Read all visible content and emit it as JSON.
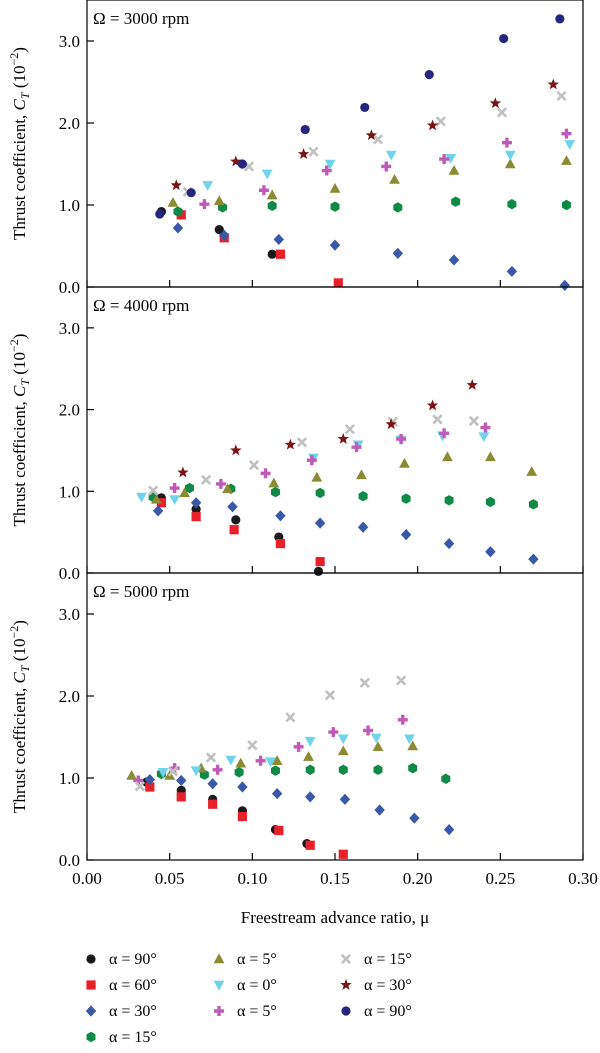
{
  "chart_data": {
    "type": "scatter",
    "xlabel": "Freestream advance ratio, μ",
    "ylabel": "Thrust coefficient, CT (10⁻²)",
    "ylabel_parts": {
      "main": "Thrust coefficient, ",
      "symbol": "C",
      "subscript": "T",
      "unit_open": " (10",
      "unit_exp": "−2",
      "unit_close": ")"
    },
    "xlim": [
      0,
      0.3
    ],
    "ylim": [
      0,
      3.5
    ],
    "x_ticks": [
      "0.00",
      "0.05",
      "0.10",
      "0.15",
      "0.20",
      "0.25",
      "0.30"
    ],
    "y_ticks": [
      "0.0",
      "1.0",
      "2.0",
      "3.0"
    ],
    "legend_position": "bottom",
    "series_styles": [
      {
        "name": "α = 90°",
        "color": "#1a1a1a",
        "marker": "circle"
      },
      {
        "name": "α = 60°",
        "color": "#e8202a",
        "marker": "square"
      },
      {
        "name": "α = 30°",
        "color": "#3a58a8",
        "marker": "diamond"
      },
      {
        "name": "α = 15°",
        "color": "#0f8a46",
        "marker": "hexagon"
      },
      {
        "name": "α = 5°",
        "color": "#8b8b32",
        "marker": "triangle"
      },
      {
        "name": "α = 0°",
        "color": "#6fd3ea",
        "marker": "triangle-down"
      },
      {
        "name": "α = 5°",
        "color": "#c05ab8",
        "marker": "plus"
      },
      {
        "name": "α = 15°",
        "color": "#c0c0c0",
        "marker": "x"
      },
      {
        "name": "α = 30°",
        "color": "#7a1414",
        "marker": "star"
      },
      {
        "name": "α = 90°",
        "color": "#26267e",
        "marker": "circle"
      }
    ],
    "panels": [
      {
        "title": "Ω = 3000 rpm",
        "series": [
          {
            "x": [
              0.045,
              0.08,
              0.112
            ],
            "y": [
              0.92,
              0.7,
              0.4
            ]
          },
          {
            "x": [
              0.057,
              0.083,
              0.117,
              0.152
            ],
            "y": [
              0.88,
              0.6,
              0.4,
              0.05
            ]
          },
          {
            "x": [
              0.055,
              0.083,
              0.116,
              0.15,
              0.188,
              0.222,
              0.257,
              0.289
            ],
            "y": [
              0.72,
              0.63,
              0.58,
              0.51,
              0.41,
              0.33,
              0.19,
              0.02
            ]
          },
          {
            "x": [
              0.055,
              0.082,
              0.112,
              0.15,
              0.188,
              0.223,
              0.257,
              0.29
            ],
            "y": [
              0.92,
              0.97,
              0.99,
              0.98,
              0.97,
              1.04,
              1.01,
              1.0
            ]
          },
          {
            "x": [
              0.052,
              0.08,
              0.112,
              0.15,
              0.186,
              0.222,
              0.256,
              0.29
            ],
            "y": [
              1.03,
              1.05,
              1.12,
              1.2,
              1.31,
              1.42,
              1.5,
              1.54
            ]
          },
          {
            "x": [
              0.073,
              0.109,
              0.147,
              0.184,
              0.22,
              0.256,
              0.292
            ],
            "y": [
              1.24,
              1.38,
              1.5,
              1.61,
              1.57,
              1.61,
              1.74
            ]
          },
          {
            "x": [
              0.071,
              0.107,
              0.145,
              0.181,
              0.216,
              0.254,
              0.29
            ],
            "y": [
              1.01,
              1.18,
              1.42,
              1.47,
              1.56,
              1.76,
              1.87
            ]
          },
          {
            "x": [
              0.061,
              0.098,
              0.137,
              0.176,
              0.214,
              0.251,
              0.287
            ],
            "y": [
              1.16,
              1.47,
              1.65,
              1.8,
              2.02,
              2.13,
              2.33
            ]
          },
          {
            "x": [
              0.054,
              0.09,
              0.131,
              0.172,
              0.209,
              0.247,
              0.282
            ],
            "y": [
              1.24,
              1.53,
              1.62,
              1.85,
              1.97,
              2.24,
              2.47
            ]
          },
          {
            "x": [
              0.044,
              0.063,
              0.094,
              0.132,
              0.168,
              0.207,
              0.252,
              0.286
            ],
            "y": [
              0.89,
              1.15,
              1.5,
              1.92,
              2.19,
              2.59,
              3.03,
              3.27
            ]
          }
        ]
      },
      {
        "title": "Ω = 4000 rpm",
        "series": [
          {
            "x": [
              0.045,
              0.066,
              0.09,
              0.116,
              0.14
            ],
            "y": [
              0.92,
              0.78,
              0.65,
              0.44,
              0.02
            ]
          },
          {
            "x": [
              0.045,
              0.066,
              0.089,
              0.117,
              0.141
            ],
            "y": [
              0.86,
              0.69,
              0.53,
              0.36,
              0.14
            ]
          },
          {
            "x": [
              0.043,
              0.066,
              0.088,
              0.117,
              0.141,
              0.167,
              0.193,
              0.219,
              0.244,
              0.27
            ],
            "y": [
              0.76,
              0.86,
              0.81,
              0.7,
              0.61,
              0.56,
              0.47,
              0.36,
              0.26,
              0.17
            ]
          },
          {
            "x": [
              0.04,
              0.062,
              0.087,
              0.114,
              0.141,
              0.167,
              0.193,
              0.219,
              0.244,
              0.27
            ],
            "y": [
              0.93,
              1.04,
              1.03,
              0.99,
              0.98,
              0.94,
              0.91,
              0.89,
              0.87,
              0.84
            ]
          },
          {
            "x": [
              0.042,
              0.059,
              0.085,
              0.113,
              0.139,
              0.166,
              0.192,
              0.218,
              0.244,
              0.269
            ],
            "y": [
              0.9,
              0.98,
              1.03,
              1.1,
              1.17,
              1.2,
              1.34,
              1.42,
              1.42,
              1.24
            ]
          },
          {
            "x": [
              0.033,
              0.053,
              0.137,
              0.164,
              0.19,
              0.215,
              0.24
            ],
            "y": [
              0.93,
              0.9,
              1.41,
              1.57,
              1.63,
              1.68,
              1.67
            ]
          },
          {
            "x": [
              0.053,
              0.081,
              0.108,
              0.136,
              0.163,
              0.19,
              0.216,
              0.241
            ],
            "y": [
              1.04,
              1.09,
              1.22,
              1.38,
              1.54,
              1.64,
              1.71,
              1.78
            ]
          },
          {
            "x": [
              0.04,
              0.072,
              0.101,
              0.13,
              0.159,
              0.185,
              0.212,
              0.234
            ],
            "y": [
              1.01,
              1.14,
              1.32,
              1.6,
              1.76,
              1.85,
              1.88,
              1.86
            ]
          },
          {
            "x": [
              0.058,
              0.09,
              0.123,
              0.155,
              0.184,
              0.209,
              0.233
            ],
            "y": [
              1.23,
              1.5,
              1.57,
              1.64,
              1.82,
              2.05,
              2.3
            ]
          },
          {
            "x": [],
            "y": []
          }
        ]
      },
      {
        "title": "Ω = 5000 rpm",
        "series": [
          {
            "x": [
              0.036,
              0.057,
              0.076,
              0.094,
              0.114,
              0.133
            ],
            "y": [
              0.95,
              0.85,
              0.74,
              0.6,
              0.37,
              0.2
            ]
          },
          {
            "x": [
              0.038,
              0.057,
              0.076,
              0.094,
              0.116,
              0.135,
              0.155
            ],
            "y": [
              0.89,
              0.77,
              0.68,
              0.53,
              0.36,
              0.18,
              0.07
            ]
          },
          {
            "x": [
              0.038,
              0.057,
              0.076,
              0.094,
              0.115,
              0.135,
              0.156,
              0.177,
              0.198,
              0.219
            ],
            "y": [
              0.98,
              0.97,
              0.93,
              0.89,
              0.81,
              0.77,
              0.74,
              0.61,
              0.51,
              0.37
            ]
          },
          {
            "x": [
              0.045,
              0.071,
              0.092,
              0.114,
              0.135,
              0.155,
              0.176,
              0.197,
              0.217
            ],
            "y": [
              1.05,
              1.04,
              1.07,
              1.09,
              1.1,
              1.1,
              1.1,
              1.12,
              0.99
            ]
          },
          {
            "x": [
              0.027,
              0.05,
              0.069,
              0.093,
              0.115,
              0.134,
              0.155,
              0.176,
              0.197
            ],
            "y": [
              1.03,
              1.03,
              1.12,
              1.18,
              1.21,
              1.26,
              1.33,
              1.38,
              1.39
            ]
          },
          {
            "x": [
              0.046,
              0.066,
              0.087,
              0.111,
              0.135,
              0.155,
              0.175,
              0.195
            ],
            "y": [
              1.07,
              1.09,
              1.22,
              1.2,
              1.45,
              1.48,
              1.49,
              1.48
            ]
          },
          {
            "x": [
              0.031,
              0.053,
              0.079,
              0.105,
              0.128,
              0.149,
              0.17,
              0.191
            ],
            "y": [
              0.97,
              1.12,
              1.1,
              1.21,
              1.38,
              1.56,
              1.58,
              1.71
            ]
          },
          {
            "x": [
              0.032,
              0.052,
              0.075,
              0.1,
              0.123,
              0.147,
              0.168,
              0.19
            ],
            "y": [
              0.9,
              1.08,
              1.25,
              1.4,
              1.74,
              2.01,
              2.16,
              2.19
            ]
          },
          {
            "x": [],
            "y": []
          },
          {
            "x": [],
            "y": []
          }
        ]
      }
    ]
  }
}
